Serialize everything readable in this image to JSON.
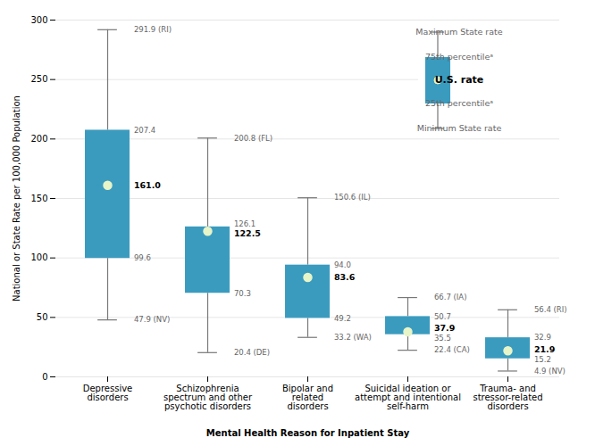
{
  "chart_data": {
    "type": "box",
    "xlabel": "Mental Health Reason for Inpatient Stay",
    "ylabel": "National or State Rate per 100,000 Population",
    "categories": [
      "Depressive\ndisorders",
      "Schizophrenia\nspectrum and other\npsychotic disorders",
      "Bipolar and\nrelated\ndisorders",
      "Suicidal ideation or\nattempt and intentional\nself-harm",
      "Trauma- and\nstressor-related\ndisorders"
    ],
    "series": [
      {
        "name": "Maximum State rate",
        "color": "#777777",
        "values": [
          291.9,
          200.8,
          150.6,
          66.7,
          56.4
        ],
        "value_labels": [
          "291.9 (RI)",
          "200.8 (FL)",
          "150.6 (IL)",
          "66.7 (IA)",
          "56.4 (RI)"
        ]
      },
      {
        "name": "75th percentileᵃ",
        "color": "#3a9bbf",
        "values": [
          207.4,
          126.1,
          94.0,
          50.7,
          32.9
        ],
        "value_labels": [
          "207.4",
          "126.1",
          "94.0",
          "50.7",
          "32.9"
        ]
      },
      {
        "name": "U.S. rate",
        "color": "#e8f5c8",
        "values": [
          161.0,
          122.5,
          83.6,
          37.9,
          21.9
        ],
        "value_labels": [
          "161.0",
          "122.5",
          "83.6",
          "37.9",
          "21.9"
        ]
      },
      {
        "name": "25th percentileᵃ",
        "color": "#3a9bbf",
        "values": [
          99.6,
          70.3,
          49.2,
          35.5,
          15.2
        ],
        "value_labels": [
          "99.6",
          "70.3",
          "49.2",
          "35.5",
          "15.2"
        ]
      },
      {
        "name": "Minimum State rate",
        "color": "#777777",
        "values": [
          47.9,
          20.4,
          33.2,
          22.4,
          4.9
        ],
        "value_labels": [
          "47.9 (NV)",
          "20.4 (DE)",
          "33.2 (WA)",
          "22.4 (CA)",
          "4.9 (NV)"
        ]
      }
    ],
    "data_labels": true,
    "legend": "top-right",
    "ylim": [
      0,
      300
    ],
    "yticks": [
      0,
      50,
      100,
      150,
      200,
      250,
      300
    ],
    "grid": true
  }
}
